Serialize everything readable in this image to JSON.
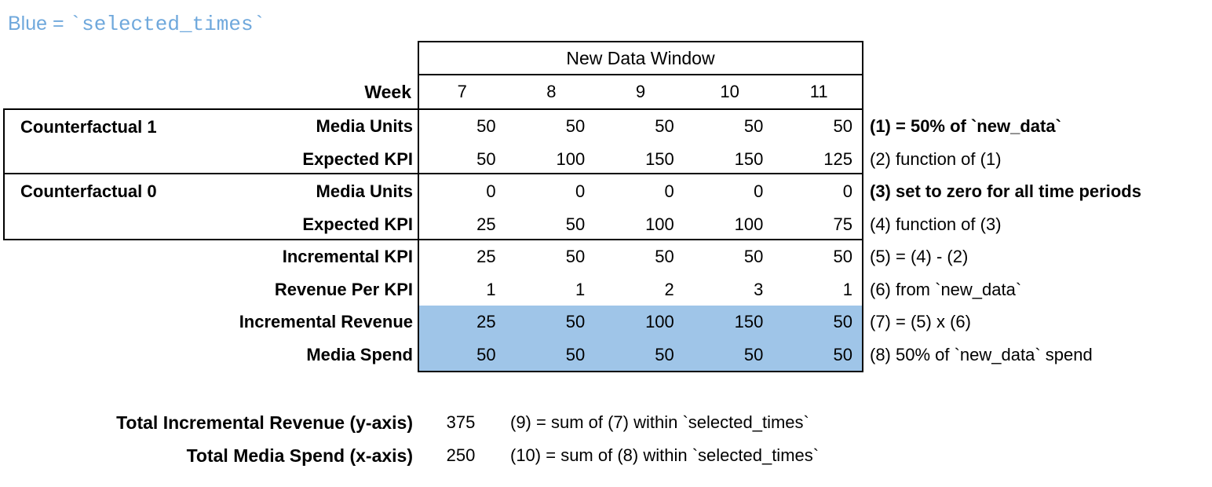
{
  "legend": {
    "prefix": "Blue = ",
    "code": "`selected_times`"
  },
  "colors": {
    "highlight_blue": "#9FC5E8",
    "legend_blue": "#6FA8DC",
    "border_black": "#000000"
  },
  "table": {
    "window_header": "New Data Window",
    "week_label": "Week",
    "weeks": [
      "7",
      "8",
      "9",
      "10",
      "11"
    ],
    "groups": [
      {
        "name": "Counterfactual 1"
      },
      {
        "name": "Counterfactual 0"
      }
    ],
    "rows": [
      {
        "label": "Media Units",
        "values": [
          "50",
          "50",
          "50",
          "50",
          "50"
        ],
        "note": "(1) = 50% of `new_data`"
      },
      {
        "label": "Expected KPI",
        "values": [
          "50",
          "100",
          "150",
          "150",
          "125"
        ],
        "note": "(2) function of (1)"
      },
      {
        "label": "Media Units",
        "values": [
          "0",
          "0",
          "0",
          "0",
          "0"
        ],
        "note": "(3) set to zero for all time periods"
      },
      {
        "label": "Expected KPI",
        "values": [
          "25",
          "50",
          "100",
          "100",
          "75"
        ],
        "note": "(4) function of (3)"
      },
      {
        "label": "Incremental KPI",
        "values": [
          "25",
          "50",
          "50",
          "50",
          "50"
        ],
        "note": "(5) = (4) - (2)"
      },
      {
        "label": "Revenue Per KPI",
        "values": [
          "1",
          "1",
          "2",
          "3",
          "1"
        ],
        "note": "(6) from `new_data`"
      },
      {
        "label": "Incremental Revenue",
        "values": [
          "25",
          "50",
          "100",
          "150",
          "50"
        ],
        "note": "(7) = (5) x (6)"
      },
      {
        "label": "Media Spend",
        "values": [
          "50",
          "50",
          "50",
          "50",
          "50"
        ],
        "note": "(8) 50% of `new_data` spend"
      }
    ]
  },
  "totals": [
    {
      "label": "Total Incremental Revenue (y-axis)",
      "value": "375",
      "note": "(9) = sum of (7) within `selected_times`"
    },
    {
      "label": "Total Media Spend (x-axis)",
      "value": "250",
      "note": "(10) = sum of (8) within `selected_times`"
    }
  ]
}
